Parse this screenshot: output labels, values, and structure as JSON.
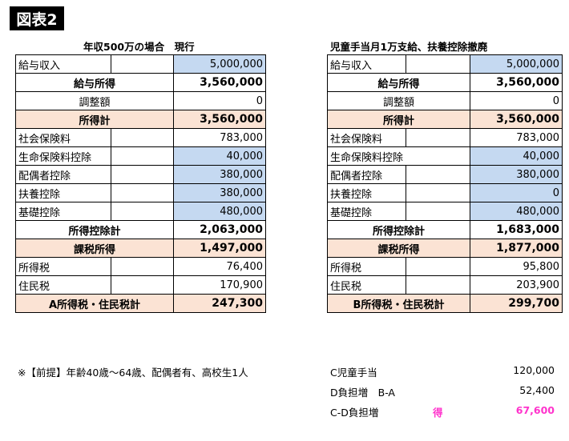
{
  "badge": "図表2",
  "left": {
    "caption": "年収500万の場合　現行",
    "rows": [
      {
        "label": "給与収入",
        "value": "5,000,000"
      },
      {
        "label": "給与所得",
        "value": "3,560,000"
      },
      {
        "label": "調整額",
        "value": "0"
      },
      {
        "label": "所得計",
        "value": "3,560,000"
      },
      {
        "label": "社会保険料",
        "value": "783,000"
      },
      {
        "label": "生命保険料控除",
        "value": "40,000"
      },
      {
        "label": "配偶者控除",
        "value": "380,000"
      },
      {
        "label": "扶養控除",
        "value": "380,000"
      },
      {
        "label": "基礎控除",
        "value": "480,000"
      },
      {
        "label": "所得控除計",
        "value": "2,063,000"
      },
      {
        "label": "課税所得",
        "value": "1,497,000"
      },
      {
        "label": "所得税",
        "value": "76,400"
      },
      {
        "label": "住民税",
        "value": "170,900"
      },
      {
        "label": "A所得税・住民税計",
        "value": "247,300"
      }
    ]
  },
  "right": {
    "caption": "児童手当月1万支給、扶養控除撤廃",
    "rows": [
      {
        "label": "給与収入",
        "value": "5,000,000"
      },
      {
        "label": "給与所得",
        "value": "3,560,000"
      },
      {
        "label": "調整額",
        "value": "0"
      },
      {
        "label": "所得計",
        "value": "3,560,000"
      },
      {
        "label": "社会保険料",
        "value": "783,000"
      },
      {
        "label": "生命保険料控除",
        "value": "40,000"
      },
      {
        "label": "配偶者控除",
        "value": "380,000"
      },
      {
        "label": "扶養控除",
        "value": "0"
      },
      {
        "label": "基礎控除",
        "value": "480,000"
      },
      {
        "label": "所得控除計",
        "value": "1,683,000"
      },
      {
        "label": "課税所得",
        "value": "1,877,000"
      },
      {
        "label": "所得税",
        "value": "95,800"
      },
      {
        "label": "住民税",
        "value": "203,900"
      },
      {
        "label": "B所得税・住民税計",
        "value": "299,700"
      }
    ]
  },
  "note": "※【前提】年齢40歳～64歳、配偶者有、高校生1人",
  "summary": [
    {
      "label": "C児童手当",
      "mid": "",
      "value": "120,000"
    },
    {
      "label": "D負担増　B-A",
      "mid": "",
      "value": "52,400"
    },
    {
      "label": "C-D負担増",
      "mid": "得",
      "value": "67,600"
    }
  ],
  "colors": {
    "blue_cell": "#c5d9f1",
    "peach_row": "#fbe3d4",
    "highlight": "#ff33cc"
  }
}
